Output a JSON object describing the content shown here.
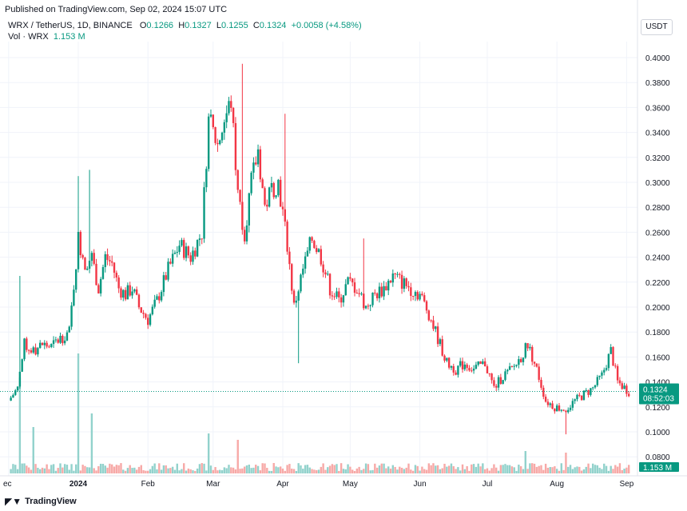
{
  "header": {
    "published": "Published on TradingView.com, Sep 02, 2024 15:07 UTC",
    "symbol": "WRX / TetherUS, 1D, BINANCE",
    "o_label": "O",
    "o_val": "0.1266",
    "h_label": "H",
    "h_val": "0.1327",
    "l_label": "L",
    "l_val": "0.1255",
    "c_label": "C",
    "c_val": "0.1324",
    "change": "+0.0058 (+4.58%)",
    "vol_label": "Vol · WRX",
    "vol_val": "1.153 M",
    "currency": "USDT"
  },
  "footer": {
    "logo_text": "TradingView"
  },
  "colors": {
    "up": "#089981",
    "down": "#f23645",
    "up_vol": "#92d2cc",
    "down_vol": "#f7a9a7",
    "grid": "#f0f3fa"
  },
  "chart_data": {
    "type": "candlestick",
    "ylim": [
      0.07,
      0.41
    ],
    "y_ticks": [
      "0.4000",
      "0.3800",
      "0.3600",
      "0.3400",
      "0.3200",
      "0.3000",
      "0.2800",
      "0.2600",
      "0.2400",
      "0.2200",
      "0.2000",
      "0.1800",
      "0.1600",
      "0.1400",
      "0.1200",
      "0.1000",
      "0.0800"
    ],
    "x_ticks": [
      "ec",
      "2024",
      "Feb",
      "Mar",
      "Apr",
      "May",
      "Jun",
      "Jul",
      "Aug",
      "Sep"
    ],
    "last_price": "0.1324",
    "countdown": "08:52:03",
    "last_volume": "1.153 M",
    "close_path": [
      [
        "2023-12-01",
        0.125
      ],
      [
        "2023-12-05",
        0.135
      ],
      [
        "2023-12-08",
        0.17
      ],
      [
        "2023-12-12",
        0.165
      ],
      [
        "2023-12-16",
        0.17
      ],
      [
        "2023-12-20",
        0.168
      ],
      [
        "2023-12-24",
        0.175
      ],
      [
        "2023-12-28",
        0.18
      ],
      [
        "2024-01-01",
        0.255
      ],
      [
        "2024-01-04",
        0.235
      ],
      [
        "2024-01-07",
        0.24
      ],
      [
        "2024-01-10",
        0.215
      ],
      [
        "2024-01-13",
        0.24
      ],
      [
        "2024-01-16",
        0.235
      ],
      [
        "2024-01-19",
        0.215
      ],
      [
        "2024-01-22",
        0.21
      ],
      [
        "2024-01-25",
        0.215
      ],
      [
        "2024-01-28",
        0.2
      ],
      [
        "2024-02-01",
        0.19
      ],
      [
        "2024-02-05",
        0.205
      ],
      [
        "2024-02-10",
        0.23
      ],
      [
        "2024-02-15",
        0.25
      ],
      [
        "2024-02-20",
        0.24
      ],
      [
        "2024-02-25",
        0.26
      ],
      [
        "2024-02-28",
        0.35
      ],
      [
        "2024-03-03",
        0.33
      ],
      [
        "2024-03-06",
        0.35
      ],
      [
        "2024-03-09",
        0.365
      ],
      [
        "2024-03-12",
        0.29
      ],
      [
        "2024-03-15",
        0.26
      ],
      [
        "2024-03-18",
        0.3
      ],
      [
        "2024-03-21",
        0.325
      ],
      [
        "2024-03-24",
        0.28
      ],
      [
        "2024-03-27",
        0.295
      ],
      [
        "2024-03-30",
        0.3
      ],
      [
        "2024-04-03",
        0.25
      ],
      [
        "2024-04-06",
        0.2
      ],
      [
        "2024-04-10",
        0.23
      ],
      [
        "2024-04-14",
        0.255
      ],
      [
        "2024-04-18",
        0.24
      ],
      [
        "2024-04-22",
        0.215
      ],
      [
        "2024-04-26",
        0.205
      ],
      [
        "2024-04-30",
        0.22
      ],
      [
        "2024-05-04",
        0.215
      ],
      [
        "2024-05-08",
        0.2
      ],
      [
        "2024-05-12",
        0.21
      ],
      [
        "2024-05-16",
        0.215
      ],
      [
        "2024-05-20",
        0.225
      ],
      [
        "2024-05-24",
        0.22
      ],
      [
        "2024-05-28",
        0.215
      ],
      [
        "2024-06-01",
        0.21
      ],
      [
        "2024-06-05",
        0.195
      ],
      [
        "2024-06-09",
        0.175
      ],
      [
        "2024-06-13",
        0.155
      ],
      [
        "2024-06-17",
        0.15
      ],
      [
        "2024-06-21",
        0.155
      ],
      [
        "2024-06-25",
        0.15
      ],
      [
        "2024-06-30",
        0.155
      ],
      [
        "2024-07-04",
        0.135
      ],
      [
        "2024-07-08",
        0.145
      ],
      [
        "2024-07-12",
        0.15
      ],
      [
        "2024-07-16",
        0.16
      ],
      [
        "2024-07-19",
        0.17
      ],
      [
        "2024-07-23",
        0.15
      ],
      [
        "2024-07-27",
        0.125
      ],
      [
        "2024-07-31",
        0.12
      ],
      [
        "2024-08-05",
        0.118
      ],
      [
        "2024-08-09",
        0.125
      ],
      [
        "2024-08-13",
        0.13
      ],
      [
        "2024-08-17",
        0.135
      ],
      [
        "2024-08-21",
        0.145
      ],
      [
        "2024-08-25",
        0.165
      ],
      [
        "2024-08-28",
        0.14
      ],
      [
        "2024-09-02",
        0.1324
      ]
    ]
  }
}
